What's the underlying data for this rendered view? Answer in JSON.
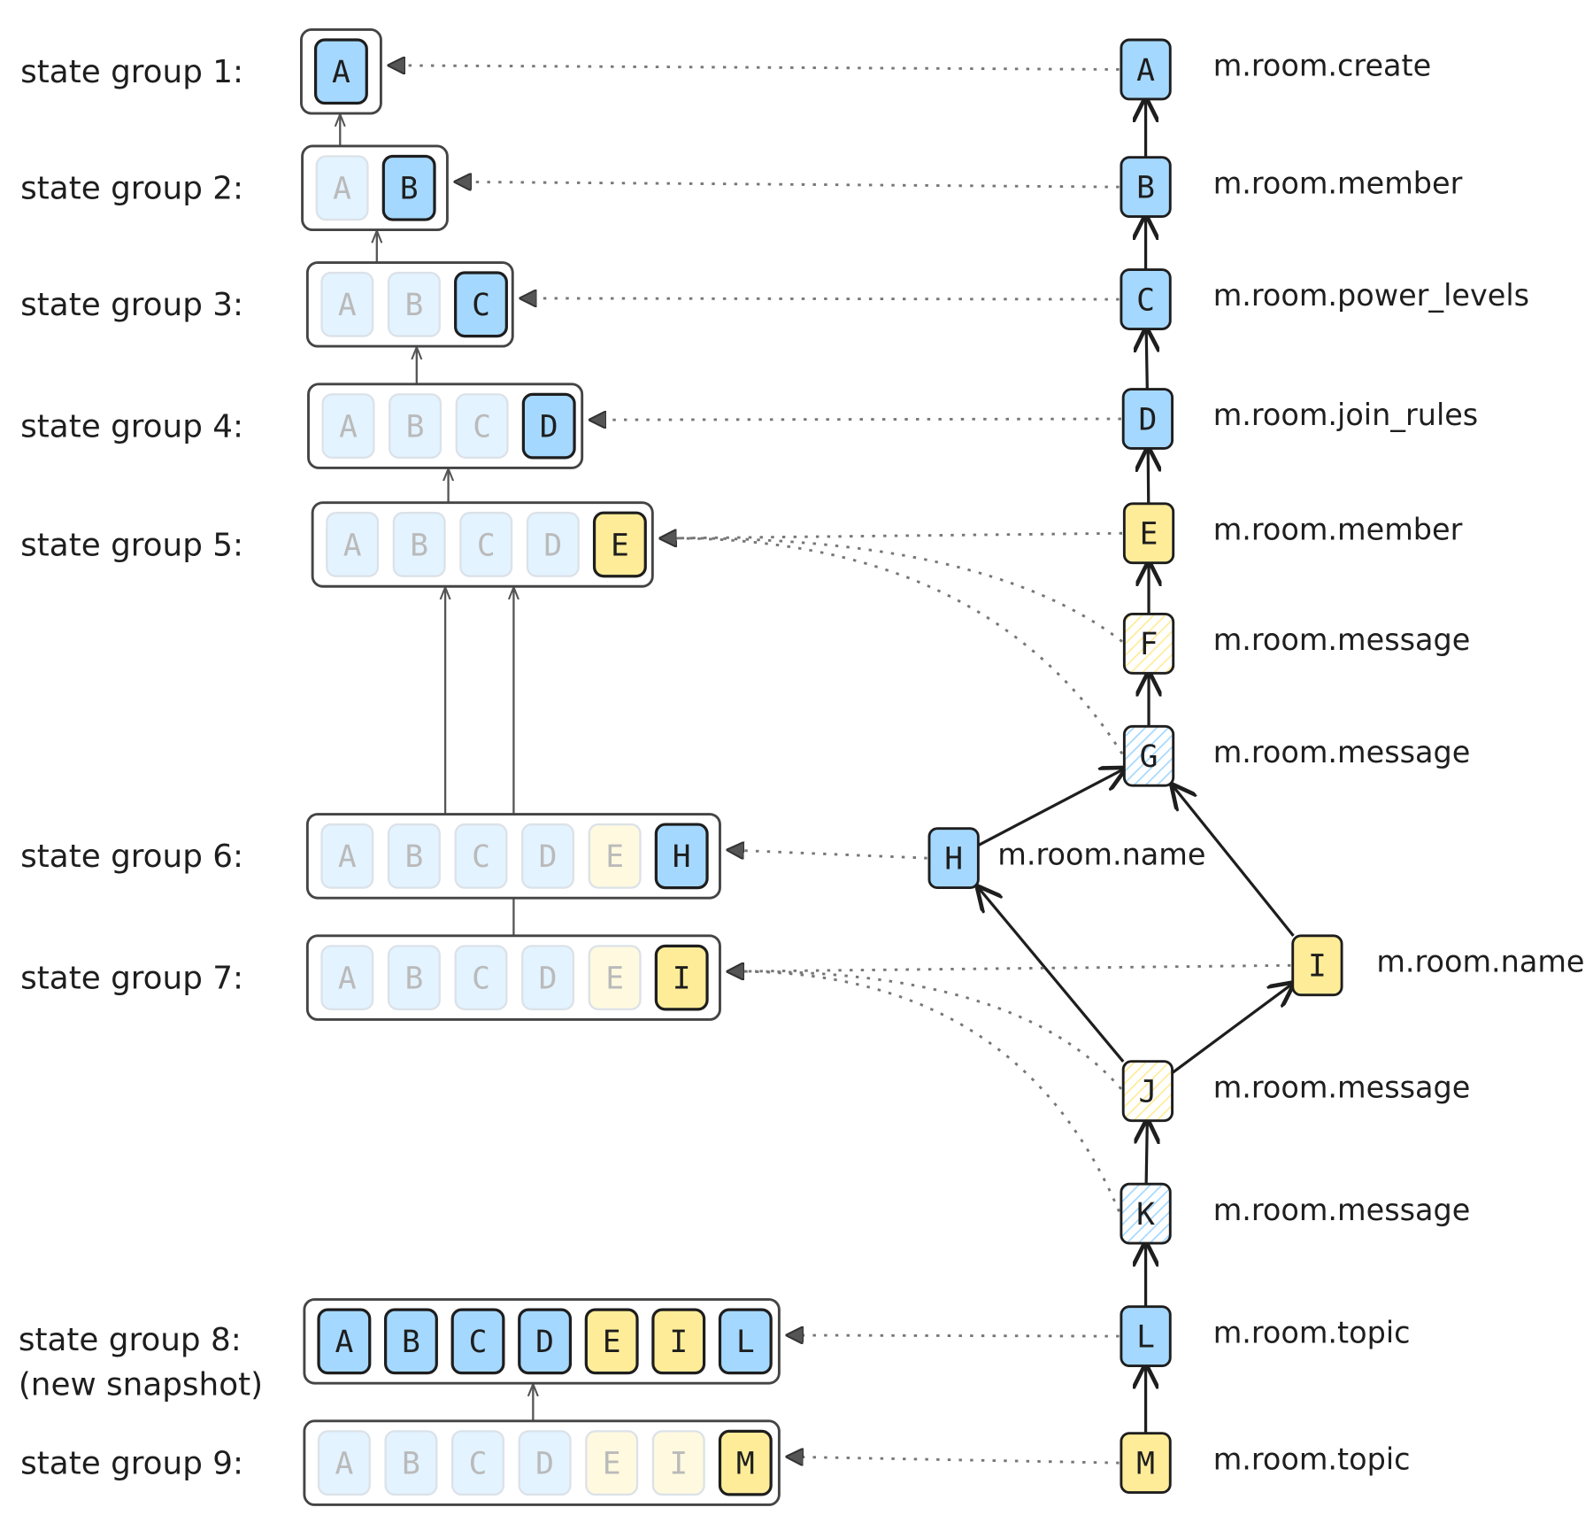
{
  "state_groups": [
    {
      "label": "state group 1:",
      "events": [
        "A"
      ]
    },
    {
      "label": "state group 2:",
      "events": [
        "A",
        "B"
      ]
    },
    {
      "label": "state group 3:",
      "events": [
        "A",
        "B",
        "C"
      ]
    },
    {
      "label": "state group 4:",
      "events": [
        "A",
        "B",
        "C",
        "D"
      ]
    },
    {
      "label": "state group 5:",
      "events": [
        "A",
        "B",
        "C",
        "D",
        "E"
      ]
    },
    {
      "label": "state group 6:",
      "events": [
        "A",
        "B",
        "C",
        "D",
        "E",
        "H"
      ]
    },
    {
      "label": "state group 7:",
      "events": [
        "A",
        "B",
        "C",
        "D",
        "E",
        "I"
      ]
    },
    {
      "label": "state group 8:",
      "note": "(new snapshot)",
      "events": [
        "A",
        "B",
        "C",
        "D",
        "E",
        "I",
        "L"
      ]
    },
    {
      "label": "state group 9:",
      "events": [
        "A",
        "B",
        "C",
        "D",
        "E",
        "I",
        "M"
      ]
    }
  ],
  "events": [
    {
      "id": "A",
      "type": "m.room.create",
      "color": "#a5d8ff"
    },
    {
      "id": "B",
      "type": "m.room.member",
      "color": "#a5d8ff"
    },
    {
      "id": "C",
      "type": "m.room.power_levels",
      "color": "#a5d8ff"
    },
    {
      "id": "D",
      "type": "m.room.join_rules",
      "color": "#a5d8ff"
    },
    {
      "id": "E",
      "type": "m.room.member",
      "color": "#ffec99"
    },
    {
      "id": "F",
      "type": "m.room.message",
      "color": "#ffec99",
      "hatched": true
    },
    {
      "id": "G",
      "type": "m.room.message",
      "color": "#a5d8ff",
      "hatched": true
    },
    {
      "id": "H",
      "type": "m.room.name",
      "color": "#a5d8ff"
    },
    {
      "id": "I",
      "type": "m.room.name",
      "color": "#ffec99"
    },
    {
      "id": "J",
      "type": "m.room.message",
      "color": "#ffec99",
      "hatched": true
    },
    {
      "id": "K",
      "type": "m.room.message",
      "color": "#a5d8ff",
      "hatched": true
    },
    {
      "id": "L",
      "type": "m.room.topic",
      "color": "#a5d8ff"
    },
    {
      "id": "M",
      "type": "m.room.topic",
      "color": "#ffec99"
    }
  ]
}
